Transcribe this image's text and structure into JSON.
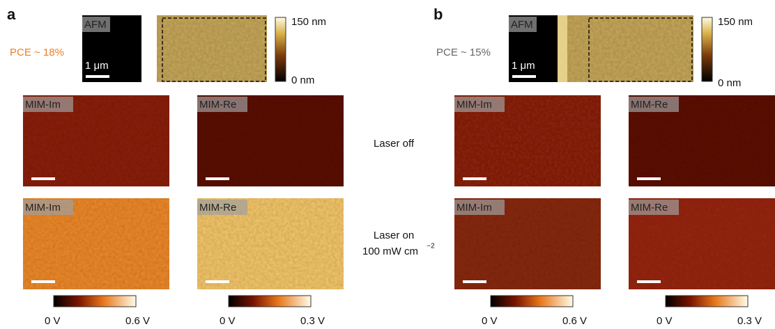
{
  "panels": [
    {
      "label": "a",
      "pce": "PCE ~ 18%",
      "afm": {
        "tag": "AFM",
        "scale": "1 μm",
        "colorbar_max": "150 nm",
        "colorbar_min": "0 nm"
      },
      "images": [
        [
          "MIM-Im",
          "MIM-Re"
        ],
        [
          "MIM-Im",
          "MIM-Re"
        ]
      ],
      "colorbars": [
        {
          "min": "0 V",
          "max": "0.6 V"
        },
        {
          "min": "0 V",
          "max": "0.3 V"
        }
      ]
    },
    {
      "label": "b",
      "pce": "PCE ~ 15%",
      "afm": {
        "tag": "AFM",
        "scale": "1 μm",
        "colorbar_max": "150 nm",
        "colorbar_min": "0 nm"
      },
      "images": [
        [
          "MIM-Im",
          "MIM-Re"
        ],
        [
          "MIM-Im",
          "MIM-Re"
        ]
      ],
      "colorbars": [
        {
          "min": "0 V",
          "max": "0.6 V"
        },
        {
          "min": "0 V",
          "max": "0.3 V"
        }
      ]
    }
  ],
  "row_labels": {
    "off": "Laser off",
    "on": "Laser on",
    "power": "100 mW cm",
    "power_exponent": "−2"
  }
}
